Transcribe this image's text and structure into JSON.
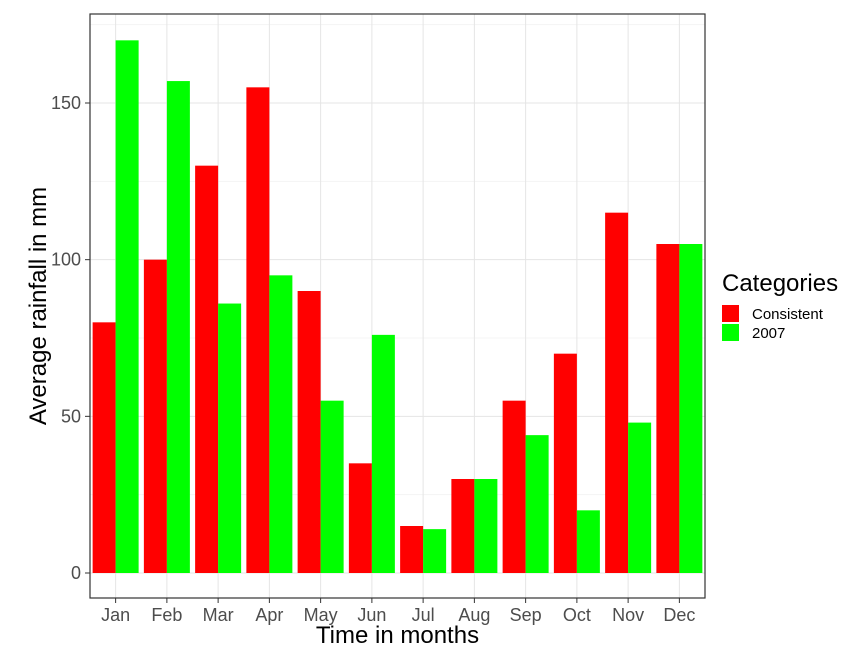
{
  "chart_data": {
    "type": "bar",
    "xlabel": "Time in months",
    "ylabel": "Average rainfall in mm",
    "categories": [
      "Jan",
      "Feb",
      "Mar",
      "Apr",
      "May",
      "Jun",
      "Jul",
      "Aug",
      "Sep",
      "Oct",
      "Nov",
      "Dec"
    ],
    "series": [
      {
        "name": "Consistent",
        "color": "#ff0000",
        "values": [
          80,
          100,
          130,
          155,
          90,
          35,
          15,
          30,
          55,
          70,
          115,
          105
        ]
      },
      {
        "name": "2007",
        "color": "#00ff00",
        "values": [
          170,
          157,
          86,
          95,
          55,
          76,
          14,
          30,
          44,
          20,
          48,
          105
        ]
      }
    ],
    "ylim": [
      0,
      175
    ],
    "yticks": [
      0,
      50,
      100,
      150
    ],
    "grid": true,
    "legend": {
      "title": "Categories",
      "position": "right"
    }
  }
}
